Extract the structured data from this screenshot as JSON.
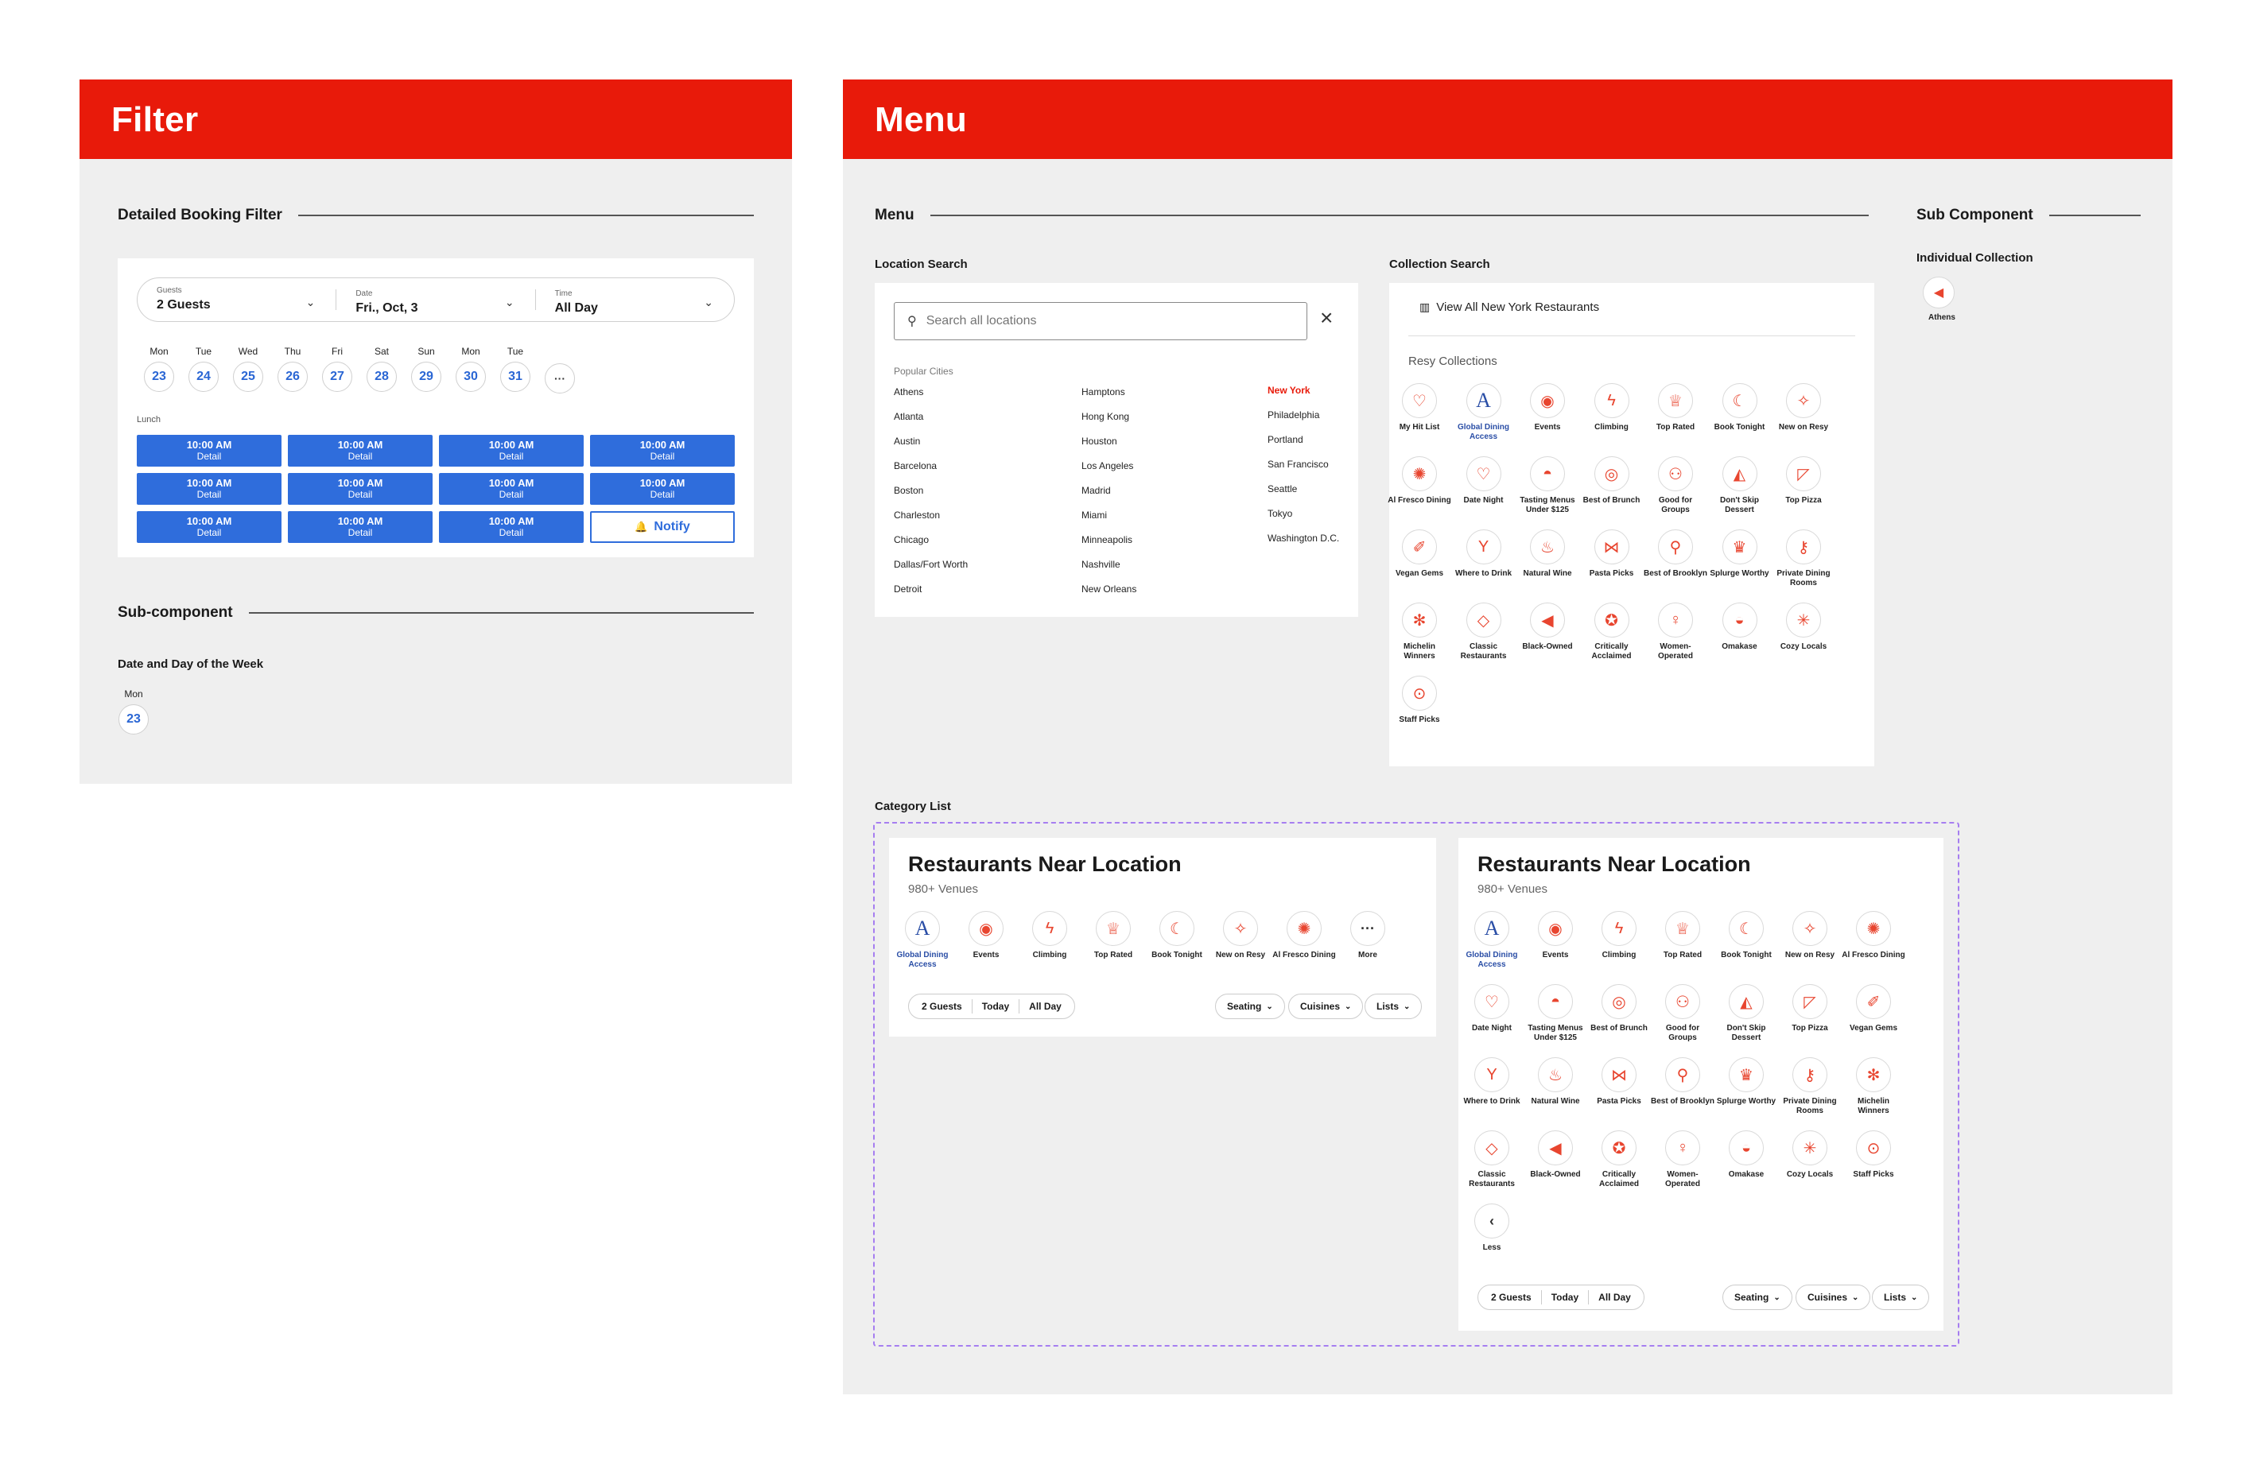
{
  "filter": {
    "header": "Filter",
    "section_title": "Detailed Booking Filter",
    "guests": {
      "label": "Guests",
      "value": "2 Guests"
    },
    "date": {
      "label": "Date",
      "value": "Fri., Oct, 3"
    },
    "time": {
      "label": "Time",
      "value": "All Day"
    },
    "days": [
      {
        "name": "Mon",
        "num": "23"
      },
      {
        "name": "Tue",
        "num": "24"
      },
      {
        "name": "Wed",
        "num": "25"
      },
      {
        "name": "Thu",
        "num": "26"
      },
      {
        "name": "Fri",
        "num": "27"
      },
      {
        "name": "Sat",
        "num": "28"
      },
      {
        "name": "Sun",
        "num": "29"
      },
      {
        "name": "Mon",
        "num": "30"
      },
      {
        "name": "Tue",
        "num": "31"
      }
    ],
    "more": "···",
    "meal_label": "Lunch",
    "slot_time": "10:00 AM",
    "slot_detail": "Detail",
    "notify": "Notify",
    "sub_title": "Sub-component",
    "sub_label": "Date and Day of the Week",
    "sub_day": {
      "name": "Mon",
      "num": "23"
    }
  },
  "menu": {
    "header": "Menu",
    "section_title": "Menu",
    "sub_component_title": "Sub Component",
    "location_search": {
      "label": "Location Search",
      "placeholder": "Search all locations",
      "popular_label": "Popular Cities",
      "col1": [
        "Athens",
        "Atlanta",
        "Austin",
        "Barcelona",
        "Boston",
        "Charleston",
        "Chicago",
        "Dallas/Fort Worth",
        "Detroit"
      ],
      "col2": [
        "Hamptons",
        "Hong Kong",
        "Houston",
        "Los Angeles",
        "Madrid",
        "Miami",
        "Minneapolis",
        "Nashville",
        "New Orleans"
      ],
      "col3": [
        "New York",
        "Philadelphia",
        "Portland",
        "San Francisco",
        "Seattle",
        "Tokyo",
        "Washington D.C."
      ],
      "active_city": "New York"
    },
    "collection_search": {
      "label": "Collection Search",
      "view_all": "View All New York Restaurants",
      "collections_label": "Resy Collections",
      "items": [
        [
          "My Hit List",
          "Global Dining Access",
          "Events",
          "Climbing",
          "Top Rated",
          "Book Tonight",
          "New on Resy"
        ],
        [
          "Al Fresco Dining",
          "Date Night",
          "Tasting Menus Under $125",
          "Best of Brunch",
          "Good for Groups",
          "Don't Skip Dessert",
          "Top Pizza"
        ],
        [
          "Vegan Gems",
          "Where to Drink",
          "Natural Wine",
          "Pasta Picks",
          "Best of Brooklyn",
          "Splurge Worthy",
          "Private Dining Rooms"
        ],
        [
          "Michelin Winners",
          "Classic Restaurants",
          "Black-Owned",
          "Critically Acclaimed",
          "Women-Operated",
          "Omakase",
          "Cozy Locals"
        ],
        [
          "Staff Picks"
        ]
      ]
    },
    "individual_collection": {
      "label": "Individual Collection",
      "item": "Athens"
    },
    "category_list": {
      "label": "Category List",
      "title": "Restaurants Near Location",
      "venues": "980+ Venues",
      "compact_items": [
        "Global Dining Access",
        "Events",
        "Climbing",
        "Top Rated",
        "Book Tonight",
        "New on Resy",
        "Al Fresco Dining",
        "More"
      ],
      "expanded_items": [
        [
          "Global Dining Access",
          "Events",
          "Climbing",
          "Top Rated",
          "Book Tonight",
          "New on Resy",
          "Al Fresco Dining"
        ],
        [
          "Date Night",
          "Tasting Menus Under $125",
          "Best of Brunch",
          "Good for Groups",
          "Don't Skip Dessert",
          "Top Pizza",
          "Vegan Gems"
        ],
        [
          "Where to Drink",
          "Natural Wine",
          "Pasta Picks",
          "Best of Brooklyn",
          "Splurge Worthy",
          "Private Dining Rooms",
          "Michelin Winners"
        ],
        [
          "Classic Restaurants",
          "Black-Owned",
          "Critically Acclaimed",
          "Women-Operated",
          "Omakase",
          "Cozy Locals",
          "Staff Picks"
        ],
        [
          "Less"
        ]
      ],
      "pills": [
        "2 Guests",
        "Today",
        "All Day"
      ],
      "dropdowns": [
        "Seating",
        "Cuisines",
        "Lists"
      ]
    }
  },
  "icons": {
    "My Hit List": "♡",
    "Global Dining Access": "A",
    "Events": "◉",
    "Climbing": "ϟ",
    "Top Rated": "♕",
    "Book Tonight": "☾",
    "New on Resy": "✧",
    "Al Fresco Dining": "✺",
    "Date Night": "♡",
    "Tasting Menus Under $125": "◓",
    "Best of Brunch": "◎",
    "Good for Groups": "⚇",
    "Don't Skip Dessert": "◭",
    "Top Pizza": "◸",
    "Vegan Gems": "✐",
    "Where to Drink": "Y",
    "Natural Wine": "♨",
    "Pasta Picks": "⋈",
    "Best of Brooklyn": "⚲",
    "Splurge Worthy": "♛",
    "Private Dining Rooms": "⚷",
    "Michelin Winners": "✻",
    "Classic Restaurants": "◇",
    "Black-Owned": "◀",
    "Critically Acclaimed": "✪",
    "Women-Operated": "♀",
    "Omakase": "◒",
    "Cozy Locals": "✳",
    "Staff Picks": "⊙",
    "More": "···",
    "Less": "‹",
    "Athens": "◀"
  },
  "colors": {
    "brand_red": "#e81a0a",
    "accent_blue": "#2f6ddc",
    "icon_red": "#e8452f",
    "dashed_purple": "#a67ef0"
  }
}
